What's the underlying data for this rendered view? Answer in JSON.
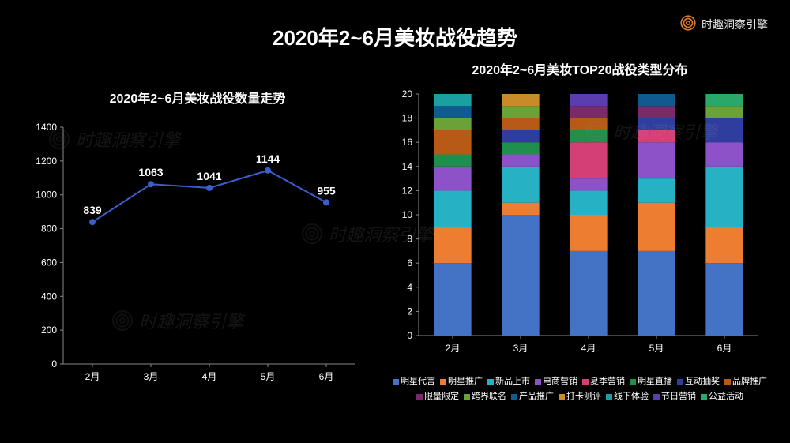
{
  "brand": {
    "text": "时趣洞察引擎",
    "logo_color": "#e07b2a"
  },
  "main_title": "2020年2~6月美妆战役趋势",
  "watermark_text": "时趣洞察引擎",
  "line_chart": {
    "type": "line",
    "title": "2020年2~6月美妆战役数量走势",
    "categories": [
      "2月",
      "3月",
      "4月",
      "5月",
      "6月"
    ],
    "values": [
      839,
      1063,
      1041,
      1144,
      955
    ],
    "ylim": [
      0,
      1400
    ],
    "ytick_step": 200,
    "line_color": "#3a5fcd",
    "marker_color": "#3a5fcd",
    "marker_radius": 4,
    "line_width": 2,
    "axis_color": "#888888",
    "text_color": "#ffffff",
    "background_color": "#000000",
    "label_fontsize": 14
  },
  "stacked_chart": {
    "type": "stacked_bar",
    "title": "2020年2~6月美妆TOP20战役类型分布",
    "categories": [
      "2月",
      "3月",
      "4月",
      "5月",
      "6月"
    ],
    "ylim": [
      0,
      20
    ],
    "ytick_step": 2,
    "bar_width": 0.55,
    "axis_color": "#888888",
    "text_color": "#ffffff",
    "background_color": "#000000",
    "series": [
      {
        "name": "明星代言",
        "color": "#4472c4",
        "values": [
          6,
          10,
          7,
          7,
          6
        ]
      },
      {
        "name": "明星推广",
        "color": "#ed7d31",
        "values": [
          3,
          1,
          3,
          4,
          3
        ]
      },
      {
        "name": "新品上市",
        "color": "#26b2c4",
        "values": [
          3,
          3,
          2,
          2,
          5
        ]
      },
      {
        "name": "电商营销",
        "color": "#8e52c8",
        "values": [
          2,
          1,
          1,
          3,
          2
        ]
      },
      {
        "name": "夏季营销",
        "color": "#d43f75",
        "values": [
          0,
          0,
          3,
          1,
          0
        ]
      },
      {
        "name": "明星直播",
        "color": "#1f8f4d",
        "values": [
          1,
          1,
          1,
          0,
          0
        ]
      },
      {
        "name": "互动抽奖",
        "color": "#2f3e9e",
        "values": [
          0,
          1,
          0,
          1,
          2
        ]
      },
      {
        "name": "品牌推广",
        "color": "#b85a17",
        "values": [
          2,
          1,
          1,
          0,
          0
        ]
      },
      {
        "name": "限量限定",
        "color": "#7a2a6a",
        "values": [
          0,
          0,
          1,
          1,
          0
        ]
      },
      {
        "name": "跨界联名",
        "color": "#6aa238",
        "values": [
          1,
          1,
          0,
          0,
          1
        ]
      },
      {
        "name": "产品推广",
        "color": "#0f5a8f",
        "values": [
          1,
          0,
          0,
          1,
          0
        ]
      },
      {
        "name": "打卡测评",
        "color": "#c98a2a",
        "values": [
          0,
          1,
          0,
          0,
          0
        ]
      },
      {
        "name": "线下体验",
        "color": "#1aa0a0",
        "values": [
          1,
          0,
          0,
          0,
          0
        ]
      },
      {
        "name": "节日营销",
        "color": "#5a3eb0",
        "values": [
          0,
          0,
          1,
          0,
          0
        ]
      },
      {
        "name": "公益活动",
        "color": "#2aa86a",
        "values": [
          0,
          0,
          0,
          0,
          1
        ]
      }
    ]
  }
}
